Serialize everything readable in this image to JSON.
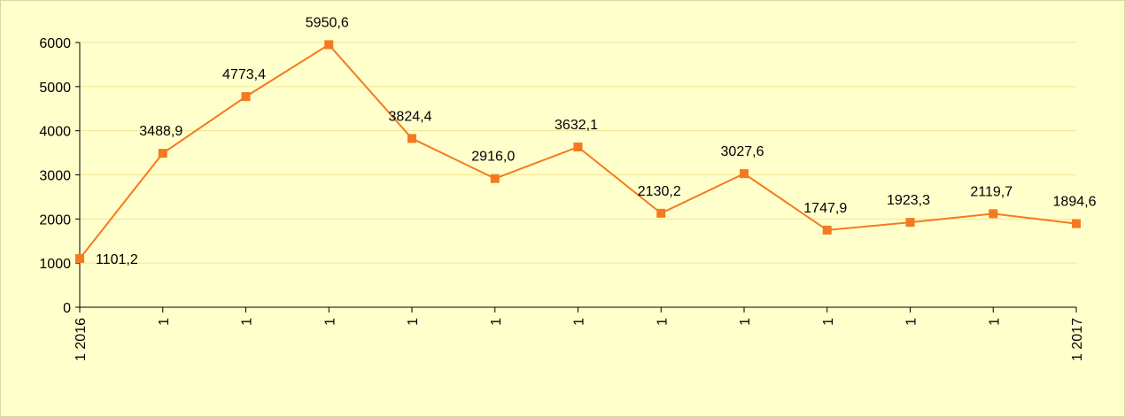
{
  "chart_data": {
    "type": "line",
    "categories": [
      "1 2016",
      "1",
      "1",
      "1",
      "1",
      "1",
      "1",
      "1",
      "1",
      "1",
      "1",
      "1",
      "1 2017"
    ],
    "series": [
      {
        "name": "series",
        "color": "#f47a1f",
        "values": [
          1101.2,
          3488.9,
          4773.4,
          5950.6,
          3824.4,
          2916.0,
          3632.1,
          2130.2,
          3027.6,
          1747.9,
          1923.3,
          2119.7,
          1894.6
        ],
        "value_labels": [
          "1101,2",
          "3488,9",
          "4773,4",
          "5950,6",
          "3824,4",
          "2916,0",
          "3632,1",
          "2130,2",
          "3027,6",
          "1747,9",
          "1923,3",
          "2119,7",
          "1894,6"
        ]
      }
    ],
    "ylim": [
      0,
      6000
    ],
    "yticks": [
      0,
      1000,
      2000,
      3000,
      4000,
      5000,
      6000
    ],
    "grid": true
  }
}
